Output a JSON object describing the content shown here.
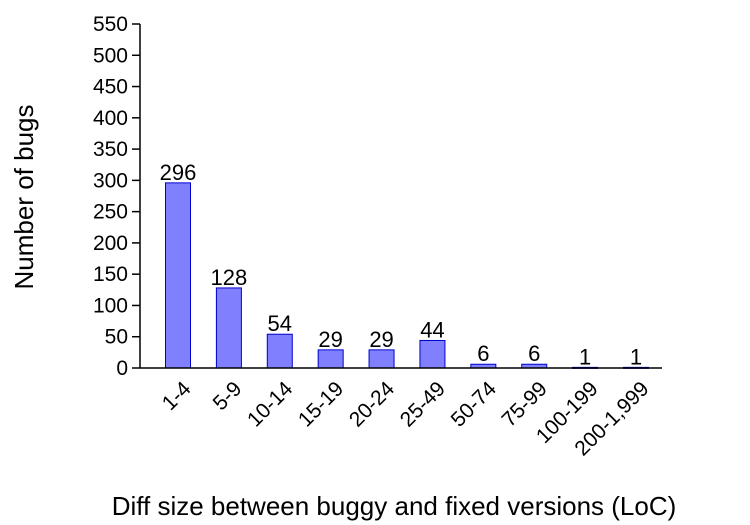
{
  "chart_data": {
    "type": "bar",
    "categories": [
      "1-4",
      "5-9",
      "10-14",
      "15-19",
      "20-24",
      "25-49",
      "50-74",
      "75-99",
      "100-199",
      "200-1,999"
    ],
    "values": [
      296,
      128,
      54,
      29,
      29,
      44,
      6,
      6,
      1,
      1
    ],
    "data_labels": [
      "296",
      "128",
      "54",
      "29",
      "29",
      "44",
      "6",
      "6",
      "1",
      "1"
    ],
    "title": "",
    "xlabel": "Diff size between buggy and fixed versions (LoC)",
    "ylabel": "Number of bugs",
    "ylim": [
      0,
      550
    ],
    "yticks": [
      0,
      50,
      100,
      150,
      200,
      250,
      300,
      350,
      400,
      450,
      500,
      550
    ],
    "ytick_labels": [
      "0",
      "50",
      "100",
      "150",
      "200",
      "250",
      "300",
      "350",
      "400",
      "450",
      "500",
      "550"
    ],
    "grid": false,
    "legend": "none",
    "bar_color": "#8080ff",
    "bar_edge_color": "#0000cc"
  }
}
